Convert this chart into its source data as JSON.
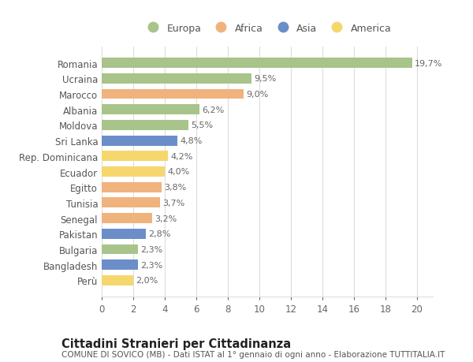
{
  "countries": [
    "Romania",
    "Ucraina",
    "Marocco",
    "Albania",
    "Moldova",
    "Sri Lanka",
    "Rep. Dominicana",
    "Ecuador",
    "Egitto",
    "Tunisia",
    "Senegal",
    "Pakistan",
    "Bulgaria",
    "Bangladesh",
    "Perù"
  ],
  "values": [
    19.7,
    9.5,
    9.0,
    6.2,
    5.5,
    4.8,
    4.2,
    4.0,
    3.8,
    3.7,
    3.2,
    2.8,
    2.3,
    2.3,
    2.0
  ],
  "labels": [
    "19,7%",
    "9,5%",
    "9,0%",
    "6,2%",
    "5,5%",
    "4,8%",
    "4,2%",
    "4,0%",
    "3,8%",
    "3,7%",
    "3,2%",
    "2,8%",
    "2,3%",
    "2,3%",
    "2,0%"
  ],
  "continents": [
    "Europa",
    "Europa",
    "Africa",
    "Europa",
    "Europa",
    "Asia",
    "America",
    "America",
    "Africa",
    "Africa",
    "Africa",
    "Asia",
    "Europa",
    "Asia",
    "America"
  ],
  "colors": {
    "Europa": "#a8c48a",
    "Africa": "#f0b37e",
    "Asia": "#6b8ec9",
    "America": "#f5d76e"
  },
  "title": "Cittadini Stranieri per Cittadinanza",
  "subtitle": "COMUNE DI SOVICO (MB) - Dati ISTAT al 1° gennaio di ogni anno - Elaborazione TUTTITALIA.IT",
  "xlim": [
    0,
    21
  ],
  "xticks": [
    0,
    2,
    4,
    6,
    8,
    10,
    12,
    14,
    16,
    18,
    20
  ],
  "bg_color": "#ffffff",
  "grid_color": "#dddddd",
  "bar_height": 0.65,
  "label_fontsize": 8.0,
  "ytick_fontsize": 8.5,
  "xtick_fontsize": 8.5,
  "title_fontsize": 10.5,
  "subtitle_fontsize": 7.5,
  "legend_fontsize": 9.0,
  "legend_order": [
    "Europa",
    "Africa",
    "Asia",
    "America"
  ]
}
